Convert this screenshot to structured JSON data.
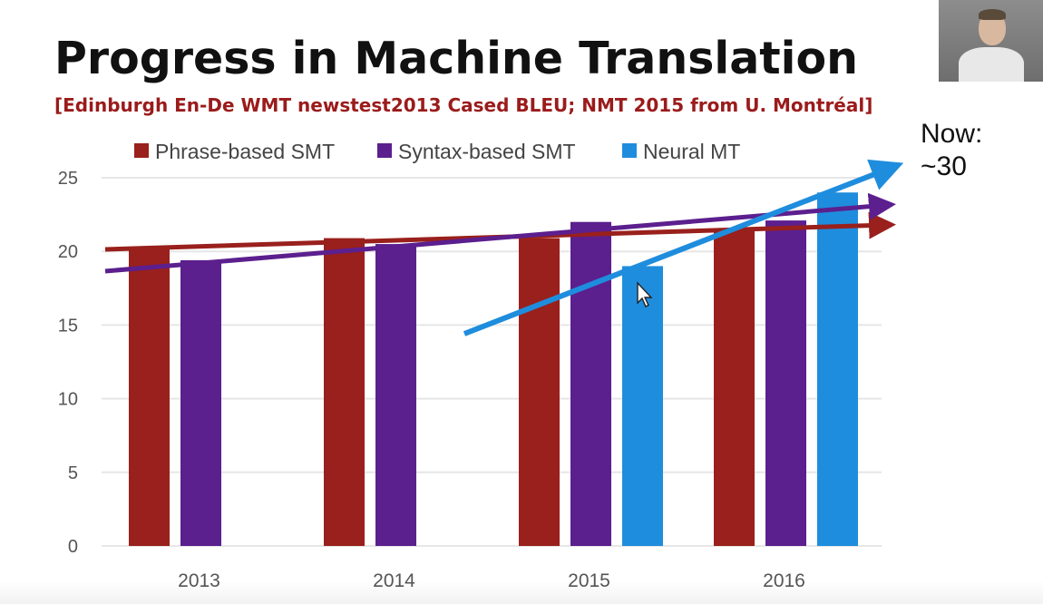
{
  "slide": {
    "title": "Progress in Machine Translation",
    "subtitle": "[Edinburgh En-De WMT newstest2013 Cased BLEU; NMT 2015 from U. Montréal]",
    "now_line1": "Now:",
    "now_line2": "~30"
  },
  "chart_data": {
    "type": "bar",
    "categories": [
      "2013",
      "2014",
      "2015",
      "2016"
    ],
    "series": [
      {
        "name": "Phrase-based SMT",
        "color": "#99201c",
        "values": [
          20.3,
          20.9,
          20.9,
          21.5
        ]
      },
      {
        "name": "Syntax-based SMT",
        "color": "#5c1f8e",
        "values": [
          19.4,
          20.5,
          22.0,
          22.1
        ]
      },
      {
        "name": "Neural MT",
        "color": "#1f8ddd",
        "values": [
          null,
          null,
          19.0,
          24.0
        ]
      }
    ],
    "ylim": [
      0,
      25
    ],
    "yticks": [
      0,
      5,
      10,
      15,
      20,
      25
    ],
    "grid": true,
    "legend_position": "top"
  },
  "colors": {
    "title": "#111111",
    "subtitle": "#9b1b1b",
    "phrase_trend": "#99201c",
    "syntax_trend": "#5c1f8e",
    "neural_trend": "#1f8ddd",
    "grid": "#e6e6e6",
    "tick_text": "#555555"
  },
  "icons": [
    "mouse-cursor-icon",
    "webcam-thumbnail"
  ]
}
